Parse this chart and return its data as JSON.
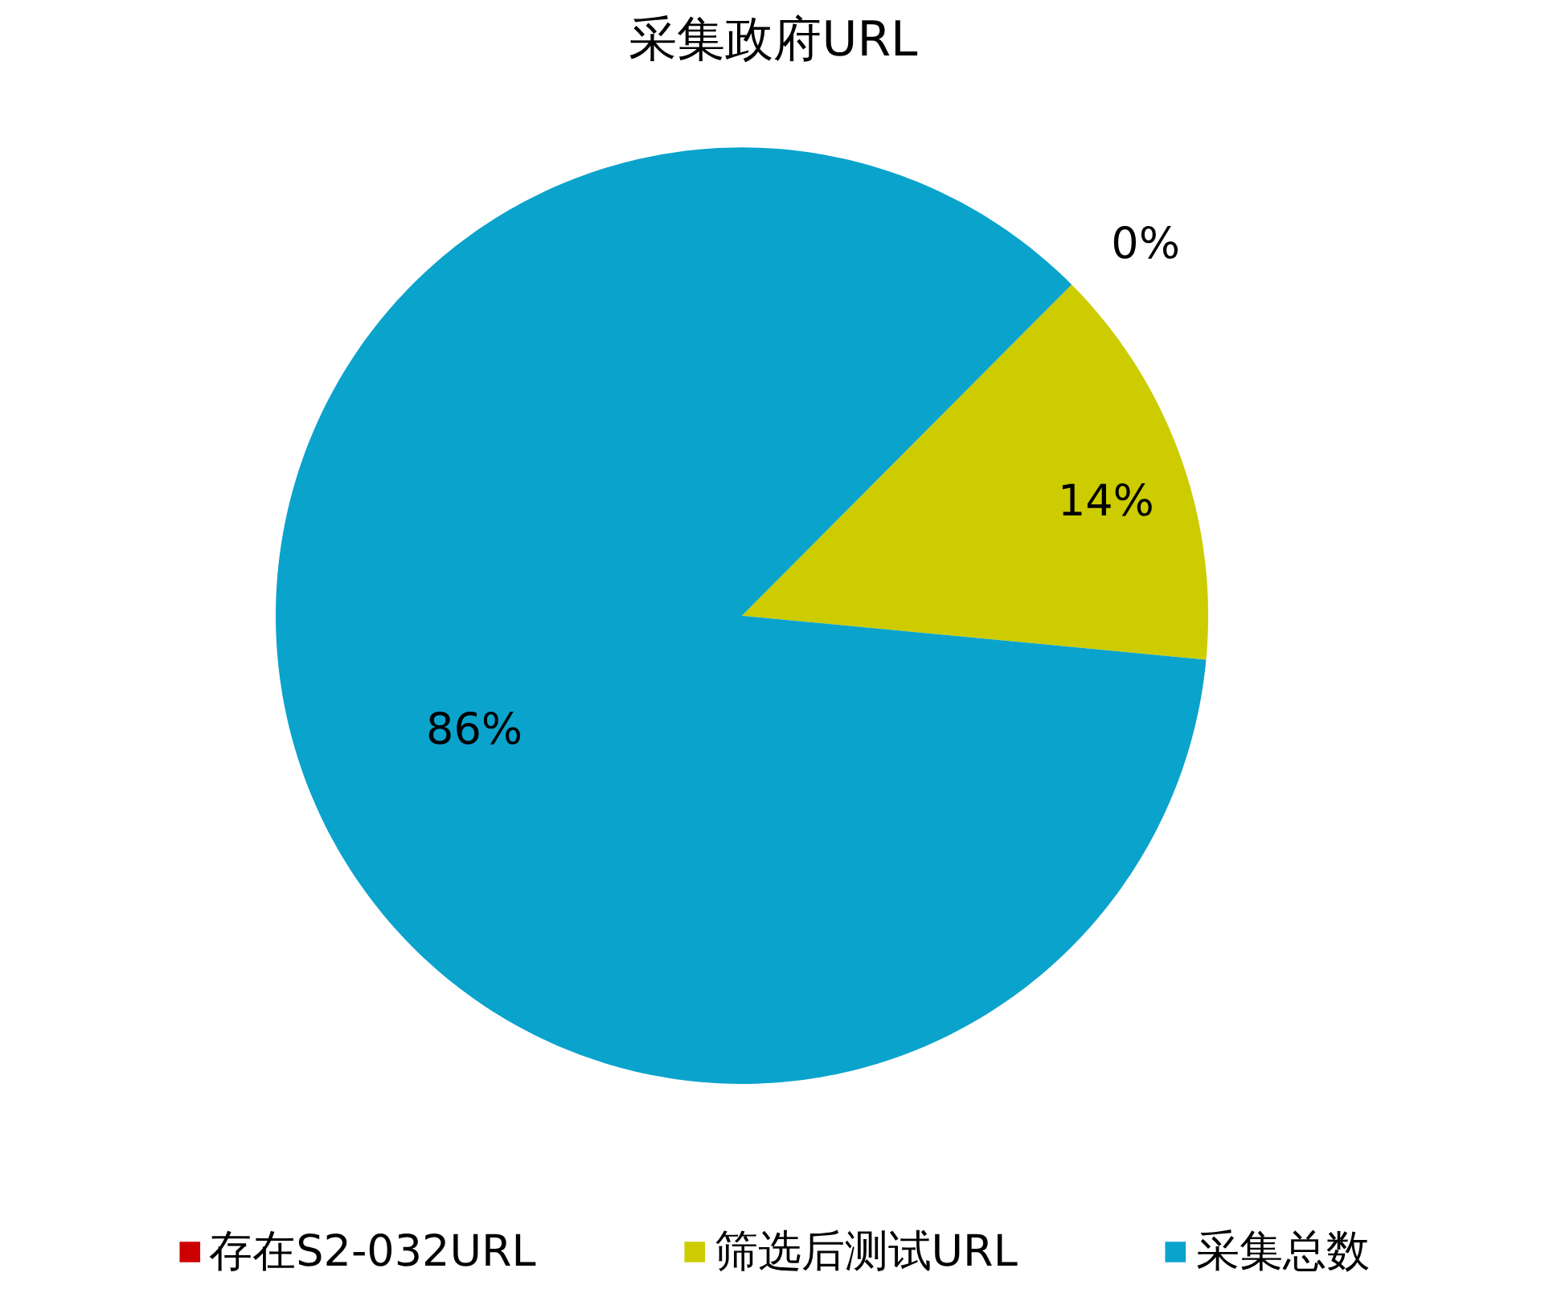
{
  "chart_data": {
    "type": "pie",
    "title": "采集政府URL",
    "categories": [
      "存在S2-032URL",
      "筛选后测试URL",
      "采集总数"
    ],
    "values": [
      0,
      14,
      86
    ],
    "colors": [
      "#cc0000",
      "#cccc00",
      "#0aa3cc"
    ],
    "value_labels": [
      "0%",
      "14%",
      "86%"
    ],
    "legend": "bottom"
  }
}
